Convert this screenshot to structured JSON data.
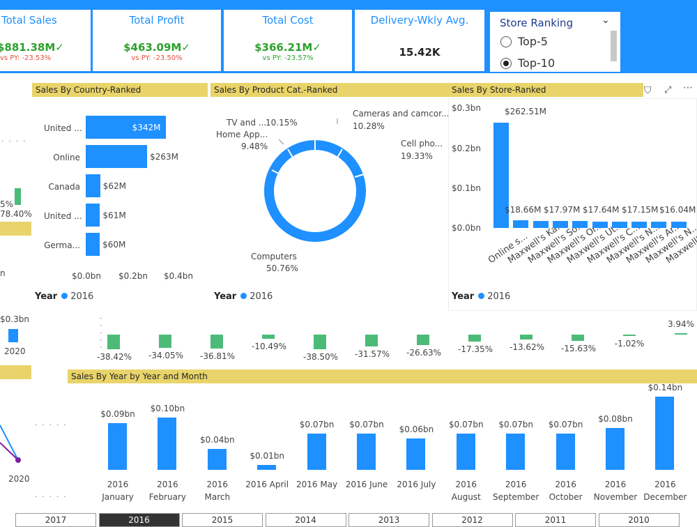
{
  "kpis": {
    "total_sales": {
      "title": "Total Sales",
      "value": "$881.38M",
      "vs": "vs PY: -23.53%"
    },
    "total_profit": {
      "title": "Total Profit",
      "value": "$463.09M",
      "vs": "vs PY: -23.50%"
    },
    "total_cost": {
      "title": "Total Cost",
      "value": "$366.21M",
      "vs": "vs PY: -23.57%"
    },
    "delivery": {
      "title": "Delivery-Wkly Avg.",
      "value": "15.42K"
    }
  },
  "store_ranking": {
    "title": "Store Ranking",
    "options": [
      {
        "label": "Top-5",
        "selected": false
      },
      {
        "label": "Top-10",
        "selected": true
      }
    ]
  },
  "left_partial": {
    "pct_a": "5%",
    "pct_b": "78.40%",
    "n": "n",
    "bn": "$0.3bn",
    "year": "2020",
    "year2": "2020"
  },
  "country_panel": {
    "title": "Sales By Country-Ranked",
    "legend_label": "Year",
    "legend_year": "2016",
    "axis": [
      "$0.0bn",
      "$0.2bn",
      "$0.4bn"
    ],
    "chart_data": {
      "type": "bar",
      "categories": [
        "United ...",
        "Online",
        "Canada",
        "United ...",
        "Germa..."
      ],
      "values": [
        342,
        263,
        62,
        61,
        60
      ],
      "labels": [
        "$342M",
        "$263M",
        "$62M",
        "$61M",
        "$60M"
      ],
      "xlim": [
        0,
        400
      ]
    }
  },
  "product_panel": {
    "title": "Sales By Product Cat.-Ranked",
    "legend_label": "Year",
    "legend_year": "2016",
    "chart_data": {
      "type": "pie",
      "categories": [
        "Computers",
        "Cell pho...",
        "Cameras and camcor...",
        "TV and ...",
        "Home App..."
      ],
      "values": [
        50.76,
        19.33,
        10.28,
        10.15,
        9.48
      ],
      "labels": [
        "50.76%",
        "19.33%",
        "10.28%",
        "10.15%",
        "9.48%"
      ]
    }
  },
  "store_panel": {
    "title": "Sales By Store-Ranked",
    "legend_label": "Year",
    "legend_year": "2016",
    "yaxis": [
      "$0.3bn",
      "$0.2bn",
      "$0.1bn",
      "$0.0bn"
    ],
    "chart_data": {
      "type": "bar",
      "categories": [
        "Online s...",
        "Maxwell's Ka...",
        "Maxwell's So...",
        "Maxwell's Or...",
        "Maxwell's Ut...",
        "Maxwell's C...",
        "Maxwell's N...",
        "Maxwell's Ar...",
        "Maxwell's N...",
        "Maxwell's W..."
      ],
      "values": [
        262.51,
        18.66,
        17.97,
        17.64,
        17.15,
        16.04,
        16.0,
        15.9,
        15.8,
        15.7
      ],
      "labels": [
        "$262.51M",
        "$18.66M",
        "$17.97M",
        "$17.64M",
        "$17.15M",
        "$16.04M"
      ],
      "ylim": [
        0,
        300
      ]
    }
  },
  "variance_row": {
    "chart_data": {
      "type": "bar",
      "values": [
        -38.42,
        -34.05,
        -36.81,
        -10.49,
        -38.5,
        -31.57,
        -26.63,
        -17.35,
        -13.62,
        -15.63,
        -1.02,
        3.94
      ],
      "labels": [
        "-38.42%",
        "-34.05%",
        "-36.81%",
        "-10.49%",
        "-38.50%",
        "-31.57%",
        "-26.63%",
        "-17.35%",
        "-13.62%",
        "-15.63%",
        "-1.02%",
        "3.94%"
      ]
    }
  },
  "monthly_panel": {
    "title": "Sales By Year by Year and Month",
    "chart_data": {
      "type": "bar",
      "categories": [
        "2016 January",
        "2016 February",
        "2016 March",
        "2016 April",
        "2016 May",
        "2016 June",
        "2016 July",
        "2016 August",
        "2016 September",
        "2016 October",
        "2016 November",
        "2016 December"
      ],
      "cat_line1": [
        "2016",
        "2016",
        "2016",
        "2016 April",
        "2016 May",
        "2016 June",
        "2016 July",
        "2016",
        "2016",
        "2016",
        "2016",
        "2016"
      ],
      "cat_line2": [
        "January",
        "February",
        "March",
        "",
        "",
        "",
        "",
        "August",
        "September",
        "October",
        "November",
        "December"
      ],
      "values": [
        0.09,
        0.1,
        0.04,
        0.01,
        0.07,
        0.07,
        0.06,
        0.07,
        0.07,
        0.07,
        0.08,
        0.14
      ],
      "labels": [
        "$0.09bn",
        "$0.10bn",
        "$0.04bn",
        "$0.01bn",
        "$0.07bn",
        "$0.07bn",
        "$0.06bn",
        "$0.07bn",
        "$0.07bn",
        "$0.07bn",
        "$0.08bn",
        "$0.14bn"
      ],
      "ylim": [
        0,
        0.15
      ]
    }
  },
  "year_slicer": {
    "years": [
      {
        "label": "2017",
        "selected": false
      },
      {
        "label": "2016",
        "selected": true
      },
      {
        "label": "2015",
        "selected": false
      },
      {
        "label": "2014",
        "selected": false
      },
      {
        "label": "2013",
        "selected": false
      },
      {
        "label": "2012",
        "selected": false
      },
      {
        "label": "2011",
        "selected": false
      },
      {
        "label": "2010",
        "selected": false
      }
    ]
  },
  "colors": {
    "accent": "#1e90ff",
    "header": "#e8d46a",
    "positive": "#2ca02c",
    "negative": "#e74c3c",
    "variance": "#4cbb78"
  }
}
